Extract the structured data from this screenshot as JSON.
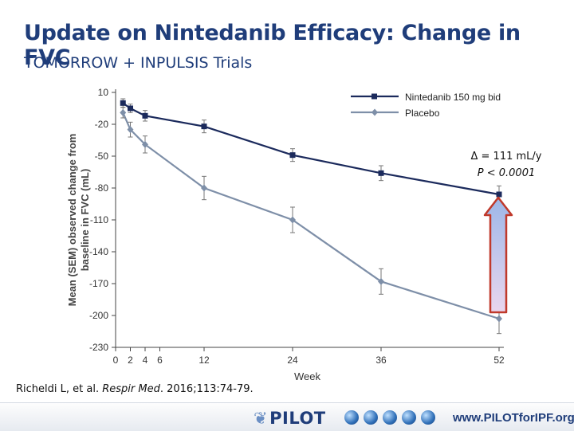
{
  "slide": {
    "title": "Update on Nintedanib Efficacy: Change in FVC",
    "subtitle": "TOMORROW + INPULSIS Trials"
  },
  "annotation": {
    "delta": "Δ = 111 mL/y",
    "p_value": "P < 0.0001"
  },
  "citation": {
    "authors": "Richeldi L, et al. ",
    "journal": "Respir Med",
    "rest": ". 2016;113:74-79."
  },
  "footer": {
    "logo": "PILOT",
    "url": "www.PILOTforIPF.org"
  },
  "colors": {
    "nintedanib": "#1b2a5c",
    "placebo": "#7e8fa8",
    "arrow_fill_top": "#9db7e8",
    "arrow_fill_bottom": "#e9d6ee",
    "arrow_stroke": "#c0392b"
  },
  "chart_data": {
    "type": "line",
    "xlabel": "Week",
    "ylabel": "Mean (SEM) observed change from baseline in FVC (mL)",
    "x_ticks": [
      0,
      2,
      4,
      6,
      12,
      24,
      36,
      52
    ],
    "y_ticks": [
      10,
      -20,
      -50,
      -80,
      -110,
      -140,
      -170,
      -200,
      -230
    ],
    "xlim": [
      0,
      52
    ],
    "ylim": [
      -230,
      10
    ],
    "legend": "top-right",
    "series": [
      {
        "name": "Nintedanib 150 mg bid",
        "marker": "square",
        "x": [
          1,
          2,
          4,
          12,
          24,
          36,
          52
        ],
        "y": [
          0,
          -5,
          -12,
          -22,
          -49,
          -66,
          -86
        ],
        "err": [
          4,
          4,
          5,
          6,
          6,
          7,
          8
        ]
      },
      {
        "name": "Placebo",
        "marker": "diamond",
        "x": [
          1,
          2,
          4,
          12,
          24,
          36,
          52
        ],
        "y": [
          -9,
          -25,
          -39,
          -80,
          -110,
          -168,
          -203
        ],
        "err": [
          5,
          7,
          8,
          11,
          12,
          12,
          14
        ]
      }
    ]
  }
}
